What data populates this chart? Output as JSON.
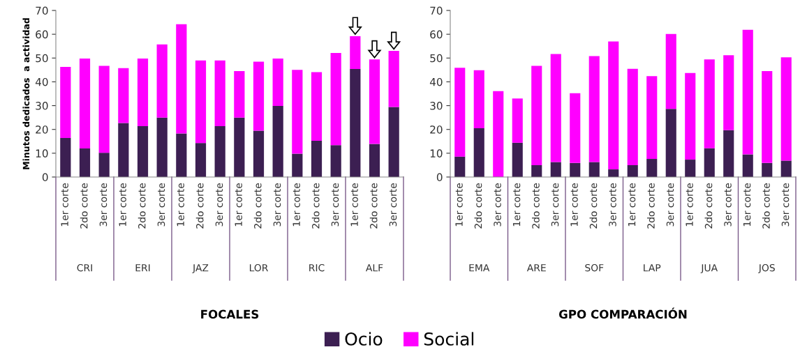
{
  "chart_data": [
    {
      "type": "bar",
      "stacked": true,
      "xlabel": "FOCALES",
      "ylabel": "Minutos dedicados  a actividad",
      "categories": [
        "1er corte",
        "2do corte",
        "3er corte",
        "1er corte",
        "2do corte",
        "3er corte",
        "1er corte",
        "2do corte",
        "3er corte",
        "1er corte",
        "2do corte",
        "3er corte",
        "1er corte",
        "2do corte",
        "3er corte",
        "1er corte",
        "2do corte",
        "3er corte"
      ],
      "annotations": [
        "CRI",
        "ERI",
        "JAZ",
        "LOR",
        "RIC",
        "ALF"
      ],
      "series": [
        {
          "name": "Ocio",
          "color": "#3c1f52",
          "values": [
            16.4,
            12.0,
            10.2,
            22.7,
            21.4,
            25.0,
            18.3,
            14.3,
            21.4,
            25.0,
            19.5,
            29.9,
            9.8,
            15.2,
            13.4,
            45.4,
            13.9,
            29.4
          ]
        },
        {
          "name": "Social",
          "color": "#ff00ff",
          "values": [
            29.9,
            37.8,
            36.5,
            23.1,
            28.4,
            30.7,
            45.9,
            34.7,
            27.6,
            19.5,
            29.0,
            19.9,
            35.2,
            28.9,
            38.7,
            13.8,
            35.5,
            23.6
          ]
        }
      ],
      "ylim": [
        0,
        70
      ],
      "yticks": [
        0,
        10,
        20,
        30,
        40,
        50,
        60,
        70
      ],
      "grid": false,
      "legend": "bottom"
    },
    {
      "type": "bar",
      "stacked": true,
      "xlabel": "GPO COMPARACIÓN",
      "categories": [
        "1er corte",
        "2do corte",
        "3er corte",
        "1er corte",
        "2do corte",
        "3er corte",
        "1er corte",
        "2do corte",
        "3er corte",
        "1er corte",
        "2do corte",
        "3er corte",
        "1er corte",
        "2do corte",
        "3er corte",
        "1er corte",
        "2do corte",
        "3er corte"
      ],
      "annotations": [
        "EMA",
        "ARE",
        "SOF",
        "LAP",
        "JUA",
        "JOS"
      ],
      "series": [
        {
          "color": "#3c1f52",
          "values": [
            8.6,
            20.5,
            0,
            14.4,
            5.0,
            6.3,
            5.9,
            6.3,
            3.2,
            5.0,
            7.6,
            28.6,
            7.3,
            12.1,
            19.7,
            9.5,
            5.9,
            6.9
          ]
        },
        {
          "color": "#ff00ff",
          "values": [
            37.3,
            24.4,
            36.1,
            18.6,
            41.7,
            45.4,
            29.3,
            44.5,
            53.8,
            40.5,
            34.8,
            31.5,
            36.4,
            37.3,
            31.5,
            52.4,
            38.6,
            43.4
          ]
        }
      ],
      "ylim": [
        0,
        70
      ],
      "yticks": [
        0,
        10,
        20,
        30,
        40,
        50,
        60,
        70
      ],
      "grid": false
    }
  ]
}
